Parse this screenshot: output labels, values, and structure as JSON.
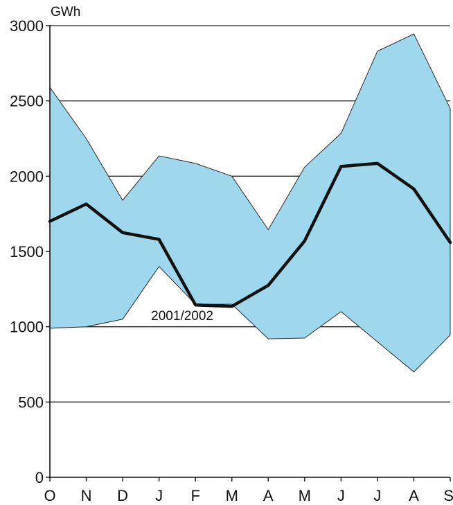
{
  "chart_data": {
    "type": "area",
    "ylabel": "GWh",
    "ylim": [
      0,
      3000
    ],
    "yticks": [
      0,
      500,
      1000,
      1500,
      2000,
      2500,
      3000
    ],
    "categories": [
      "O",
      "N",
      "D",
      "J",
      "F",
      "M",
      "A",
      "M",
      "J",
      "J",
      "A",
      "S"
    ],
    "grid": true,
    "band": {
      "upper": [
        2590,
        2250,
        1840,
        2135,
        2085,
        2000,
        1645,
        2060,
        2285,
        2830,
        2945,
        2450
      ],
      "lower": [
        990,
        1000,
        1050,
        1400,
        1150,
        1150,
        920,
        925,
        1100,
        900,
        700,
        945
      ],
      "color": "#9fd8ec"
    },
    "series": [
      {
        "name": "2001/2002",
        "values": [
          1700,
          1815,
          1625,
          1580,
          1145,
          1135,
          1275,
          1570,
          2065,
          2085,
          1915,
          1560
        ],
        "color": "#111111"
      }
    ],
    "annotations": [
      {
        "text": "2001/2002",
        "category_index": 4,
        "value": 1045
      }
    ]
  }
}
